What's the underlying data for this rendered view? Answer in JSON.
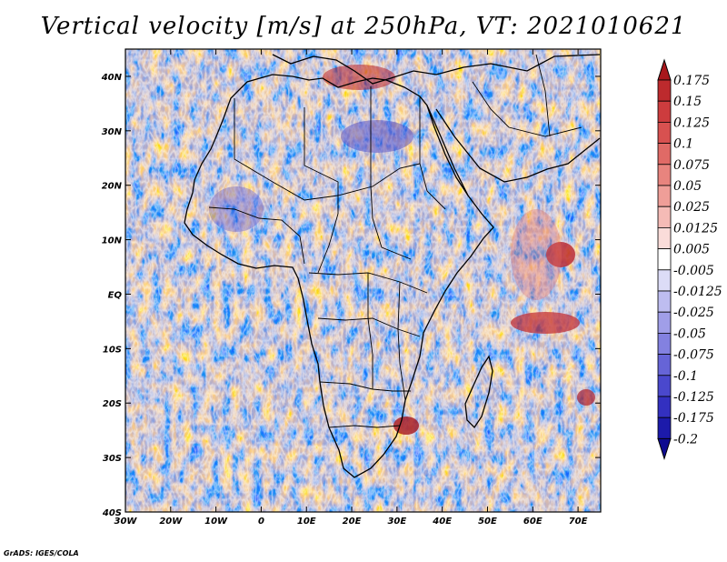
{
  "title": "Vertical velocity [m/s] at 250hPa, VT: 2021010621",
  "credit": "GrADS: IGES/COLA",
  "chart_data": {
    "type": "heatmap",
    "variable": "Vertical velocity",
    "units": "m/s",
    "level": "250hPa",
    "valid_time": "2021010621",
    "lon_range": [
      -30,
      75
    ],
    "lat_range": [
      -40,
      45
    ],
    "x_ticks": [
      {
        "lon": -30,
        "label": "30W"
      },
      {
        "lon": -20,
        "label": "20W"
      },
      {
        "lon": -10,
        "label": "10W"
      },
      {
        "lon": 0,
        "label": "0"
      },
      {
        "lon": 10,
        "label": "10E"
      },
      {
        "lon": 20,
        "label": "20E"
      },
      {
        "lon": 30,
        "label": "30E"
      },
      {
        "lon": 40,
        "label": "40E"
      },
      {
        "lon": 50,
        "label": "50E"
      },
      {
        "lon": 60,
        "label": "60E"
      },
      {
        "lon": 70,
        "label": "70E"
      }
    ],
    "y_ticks": [
      {
        "lat": 40,
        "label": "40N"
      },
      {
        "lat": 30,
        "label": "30N"
      },
      {
        "lat": 20,
        "label": "20N"
      },
      {
        "lat": 10,
        "label": "10N"
      },
      {
        "lat": 0,
        "label": "EQ"
      },
      {
        "lat": -10,
        "label": "10S"
      },
      {
        "lat": -20,
        "label": "20S"
      },
      {
        "lat": -30,
        "label": "30S"
      },
      {
        "lat": -40,
        "label": "40S"
      }
    ],
    "colorbar": {
      "labels": [
        "0.175",
        "0.15",
        "0.125",
        "0.1",
        "0.075",
        "0.05",
        "0.025",
        "0.0125",
        "0.005",
        "-0.005",
        "-0.0125",
        "-0.025",
        "-0.05",
        "-0.075",
        "-0.1",
        "-0.125",
        "-0.175",
        "-0.2"
      ],
      "colors": [
        "#a8171c",
        "#bd2a2d",
        "#cd3c3e",
        "#d85150",
        "#e06a66",
        "#e8847e",
        "#ef9e98",
        "#f5bbb6",
        "#fadcd9",
        "#ffffff",
        "#dcdcf7",
        "#bebdf0",
        "#a09ee8",
        "#8381e0",
        "#6664d7",
        "#4a48cd",
        "#3330c0",
        "#1c1aaa",
        "#0e0b90"
      ]
    }
  }
}
